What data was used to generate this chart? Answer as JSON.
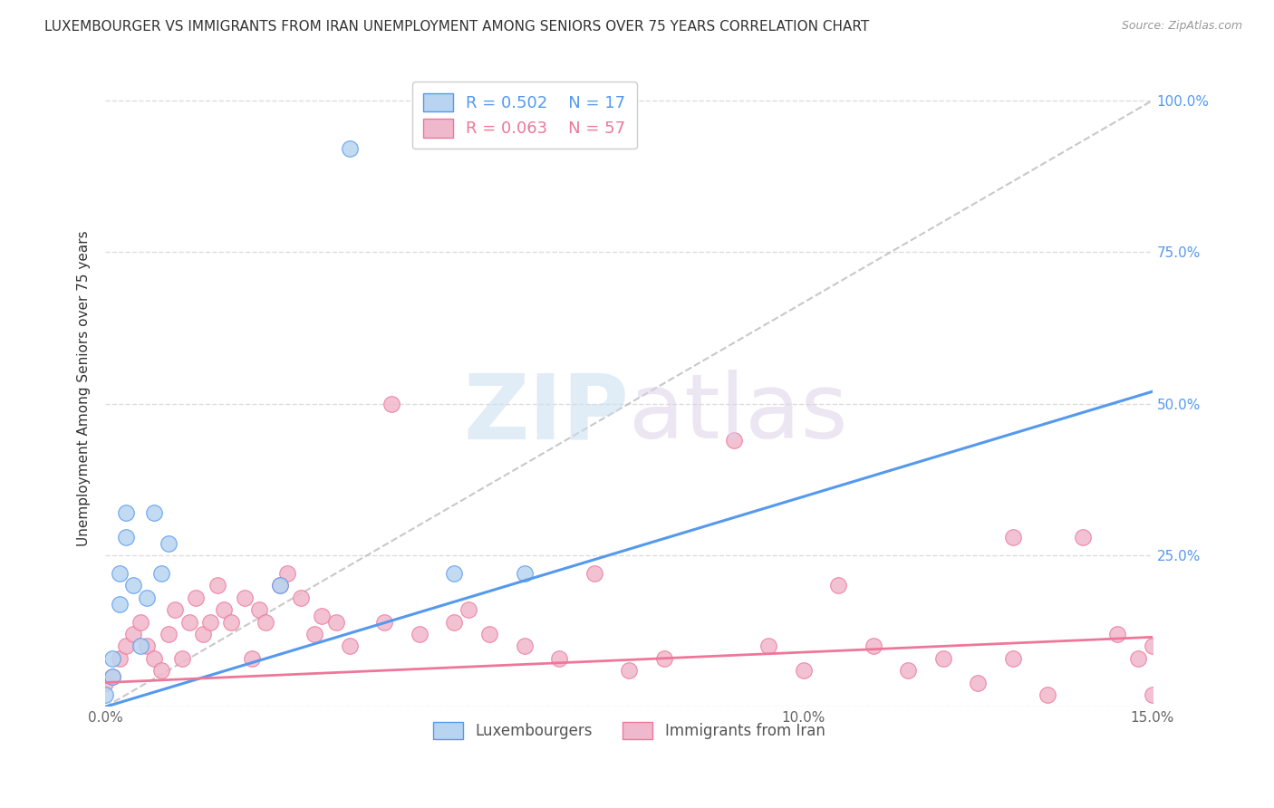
{
  "title": "LUXEMBOURGER VS IMMIGRANTS FROM IRAN UNEMPLOYMENT AMONG SENIORS OVER 75 YEARS CORRELATION CHART",
  "source": "Source: ZipAtlas.com",
  "ylabel": "Unemployment Among Seniors over 75 years",
  "xlim": [
    0,
    0.15
  ],
  "ylim": [
    0,
    1.05
  ],
  "xticks": [
    0.0,
    0.05,
    0.1,
    0.15
  ],
  "xticklabels": [
    "0.0%",
    "",
    "10.0%",
    "15.0%"
  ],
  "yticks": [
    0.0,
    0.25,
    0.5,
    0.75,
    1.0
  ],
  "yticklabels_left": [
    "",
    "",
    "",
    "",
    ""
  ],
  "yticklabels_right": [
    "",
    "25.0%",
    "50.0%",
    "75.0%",
    "100.0%"
  ],
  "legend_r1": "R = 0.502",
  "legend_n1": "N = 17",
  "legend_r2": "R = 0.063",
  "legend_n2": "N = 57",
  "color_lux": "#b8d4f0",
  "color_iran": "#f0b8cc",
  "color_lux_line": "#5599ee",
  "color_iran_line": "#ee7799",
  "color_diag": "#bbbbbb",
  "background_color": "#ffffff",
  "grid_color": "#dddddd",
  "lux_scatter_x": [
    0.0,
    0.001,
    0.001,
    0.002,
    0.002,
    0.003,
    0.003,
    0.004,
    0.005,
    0.006,
    0.007,
    0.008,
    0.009,
    0.025,
    0.05,
    0.06,
    0.035
  ],
  "lux_scatter_y": [
    0.02,
    0.05,
    0.08,
    0.17,
    0.22,
    0.28,
    0.32,
    0.2,
    0.1,
    0.18,
    0.32,
    0.22,
    0.27,
    0.2,
    0.22,
    0.22,
    0.92
  ],
  "iran_scatter_x": [
    0.0,
    0.001,
    0.002,
    0.003,
    0.004,
    0.005,
    0.006,
    0.007,
    0.008,
    0.009,
    0.01,
    0.011,
    0.012,
    0.013,
    0.014,
    0.015,
    0.016,
    0.017,
    0.018,
    0.02,
    0.021,
    0.022,
    0.023,
    0.025,
    0.026,
    0.028,
    0.03,
    0.031,
    0.033,
    0.035,
    0.04,
    0.041,
    0.045,
    0.05,
    0.052,
    0.055,
    0.06,
    0.065,
    0.07,
    0.075,
    0.08,
    0.09,
    0.095,
    0.1,
    0.105,
    0.11,
    0.115,
    0.12,
    0.125,
    0.13,
    0.13,
    0.135,
    0.14,
    0.145,
    0.148,
    0.15,
    0.15
  ],
  "iran_scatter_y": [
    0.04,
    0.05,
    0.08,
    0.1,
    0.12,
    0.14,
    0.1,
    0.08,
    0.06,
    0.12,
    0.16,
    0.08,
    0.14,
    0.18,
    0.12,
    0.14,
    0.2,
    0.16,
    0.14,
    0.18,
    0.08,
    0.16,
    0.14,
    0.2,
    0.22,
    0.18,
    0.12,
    0.15,
    0.14,
    0.1,
    0.14,
    0.5,
    0.12,
    0.14,
    0.16,
    0.12,
    0.1,
    0.08,
    0.22,
    0.06,
    0.08,
    0.44,
    0.1,
    0.06,
    0.2,
    0.1,
    0.06,
    0.08,
    0.04,
    0.28,
    0.08,
    0.02,
    0.28,
    0.12,
    0.08,
    0.1,
    0.02
  ],
  "lux_line_x": [
    0.0,
    0.15
  ],
  "lux_line_y": [
    0.0,
    0.52
  ],
  "iran_line_x": [
    0.0,
    0.15
  ],
  "iran_line_y": [
    0.04,
    0.115
  ],
  "marker_size": 160
}
